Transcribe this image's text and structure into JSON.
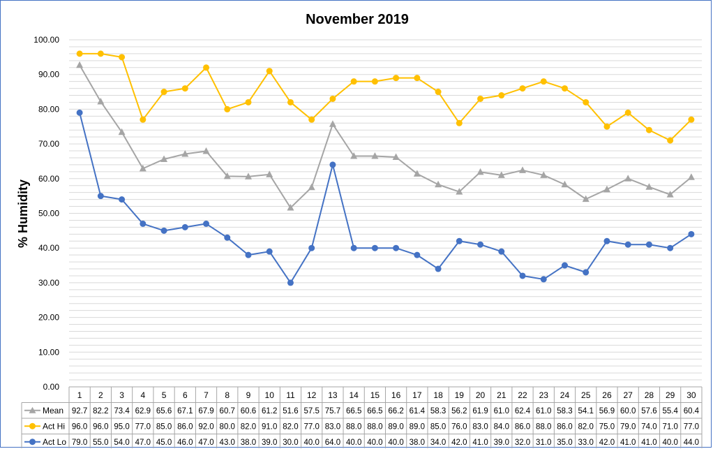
{
  "chart_data": {
    "type": "line",
    "title": "November 2019",
    "xlabel": "",
    "ylabel": "% Humidity",
    "ylim": [
      0,
      100
    ],
    "yticks": [
      "0.00",
      "10.00",
      "20.00",
      "30.00",
      "40.00",
      "50.00",
      "60.00",
      "70.00",
      "80.00",
      "90.00",
      "100.00"
    ],
    "grid": "horizontal, every 2 units",
    "legend": "data table below x-axis",
    "categories": [
      "1",
      "2",
      "3",
      "4",
      "5",
      "6",
      "7",
      "8",
      "9",
      "10",
      "11",
      "12",
      "13",
      "14",
      "15",
      "16",
      "17",
      "18",
      "19",
      "20",
      "21",
      "22",
      "23",
      "24",
      "25",
      "26",
      "27",
      "28",
      "29",
      "30"
    ],
    "series": [
      {
        "name": "Mean",
        "color": "#a5a5a5",
        "marker": "triangle",
        "values": [
          92.7,
          82.2,
          73.4,
          62.9,
          65.6,
          67.1,
          67.9,
          60.7,
          60.6,
          61.2,
          51.6,
          57.5,
          75.7,
          66.5,
          66.5,
          66.2,
          61.4,
          58.3,
          56.2,
          61.9,
          61.0,
          62.4,
          61.0,
          58.3,
          54.1,
          56.9,
          60.0,
          57.6,
          55.4,
          60.4
        ]
      },
      {
        "name": "Act Hi",
        "color": "#ffc000",
        "marker": "circle",
        "values": [
          96.0,
          96.0,
          95.0,
          77.0,
          85.0,
          86.0,
          92.0,
          80.0,
          82.0,
          91.0,
          82.0,
          77.0,
          83.0,
          88.0,
          88.0,
          89.0,
          89.0,
          85.0,
          76.0,
          83.0,
          84.0,
          86.0,
          88.0,
          86.0,
          82.0,
          75.0,
          79.0,
          74.0,
          71.0,
          77.0
        ]
      },
      {
        "name": "Act Lo",
        "color": "#4472c4",
        "marker": "circle",
        "values": [
          79.0,
          55.0,
          54.0,
          47.0,
          45.0,
          46.0,
          47.0,
          43.0,
          38.0,
          39.0,
          30.0,
          40.0,
          64.0,
          40.0,
          40.0,
          40.0,
          38.0,
          34.0,
          42.0,
          41.0,
          39.0,
          32.0,
          31.0,
          35.0,
          33.0,
          42.0,
          41.0,
          41.0,
          40.0,
          44.0
        ]
      }
    ]
  }
}
